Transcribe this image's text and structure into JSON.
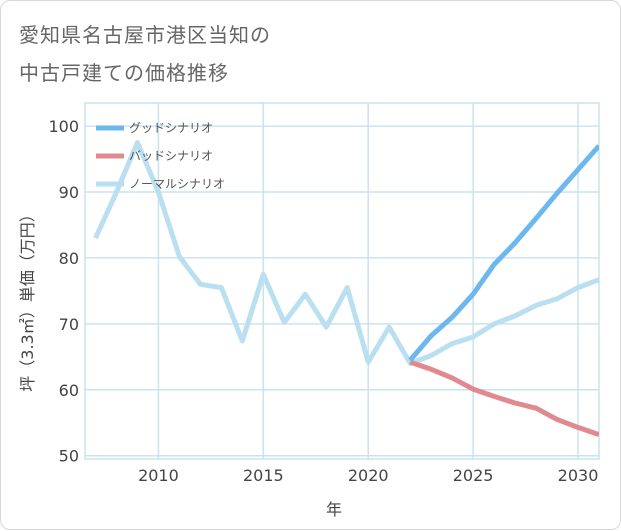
{
  "chart_data": {
    "type": "line",
    "title_line1": "愛知県名古屋市港区当知の",
    "title_line2": "中古戸建ての価格推移",
    "xlabel": "年",
    "ylabel": "坪（3.3㎡）単価（万円）",
    "xlim": [
      2006.5,
      2031
    ],
    "ylim": [
      49.5,
      103.5
    ],
    "x_ticks": [
      2010,
      2015,
      2020,
      2025,
      2030
    ],
    "y_ticks": [
      50,
      60,
      70,
      80,
      90,
      100
    ],
    "grid": true,
    "legend_position": "top-left",
    "series": [
      {
        "name": "グッドシナリオ",
        "color": "#6cb8ee",
        "x": [
          2022,
          2023,
          2024,
          2025,
          2026,
          2027,
          2028,
          2029,
          2030,
          2031
        ],
        "values": [
          64.5,
          68.2,
          71.0,
          74.5,
          79.0,
          82.3,
          86.0,
          89.8,
          93.4,
          97.0
        ]
      },
      {
        "name": "バッドシナリオ",
        "color": "#e08a90",
        "x": [
          2022,
          2023,
          2024,
          2025,
          2026,
          2027,
          2028,
          2029,
          2030,
          2031
        ],
        "values": [
          64.2,
          63.1,
          61.8,
          60.1,
          59.0,
          58.0,
          57.2,
          55.5,
          54.3,
          53.2
        ]
      },
      {
        "name": "ノーマルシナリオ",
        "color": "#b9dff0",
        "x": [
          2007,
          2008,
          2009,
          2010,
          2011,
          2012,
          2013,
          2014,
          2015,
          2016,
          2017,
          2018,
          2019,
          2020,
          2021,
          2022,
          2023,
          2024,
          2025,
          2026,
          2027,
          2028,
          2029,
          2030,
          2031
        ],
        "values": [
          83.0,
          90.0,
          97.5,
          90.0,
          80.2,
          76.0,
          75.5,
          67.4,
          77.5,
          70.2,
          74.5,
          69.5,
          75.5,
          64.2,
          69.5,
          64.0,
          65.2,
          67.0,
          68.0,
          70.0,
          71.2,
          72.8,
          73.8,
          75.5,
          76.7
        ]
      }
    ]
  }
}
